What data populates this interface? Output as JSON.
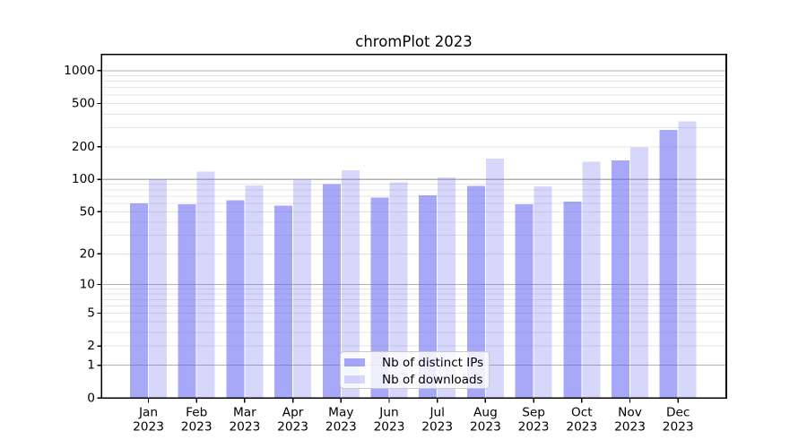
{
  "chart_data": {
    "type": "bar",
    "title": "chromPlot 2023",
    "categories": [
      "Jan",
      "Feb",
      "Mar",
      "Apr",
      "May",
      "Jun",
      "Jul",
      "Aug",
      "Sep",
      "Oct",
      "Nov",
      "Dec"
    ],
    "year_label": "2023",
    "series": [
      {
        "name": "Nb of distinct IPs",
        "color": "rgba(97,97,242,0.55)",
        "values": [
          60,
          59,
          64,
          57,
          90,
          68,
          71,
          87,
          59,
          62,
          150,
          287
        ]
      },
      {
        "name": "Nb of downloads",
        "color": "rgba(97,97,242,0.25)",
        "values": [
          100,
          118,
          88,
          99,
          121,
          94,
          104,
          156,
          86,
          145,
          198,
          342
        ]
      }
    ],
    "y_scale": "log1p",
    "y_ticks": [
      0,
      1,
      2,
      5,
      10,
      20,
      50,
      100,
      200,
      500,
      1000
    ],
    "y_major_gridlines": [
      1,
      10,
      100,
      1000
    ],
    "ylim": [
      0,
      1412
    ],
    "xlabel": "",
    "ylabel": "",
    "grid": true,
    "legend_position": "lower center"
  },
  "colors": {
    "grid_major": "#b2b2b2",
    "grid_minor": "#e5e5e5",
    "axis": "#000000",
    "background": "#ffffff"
  }
}
